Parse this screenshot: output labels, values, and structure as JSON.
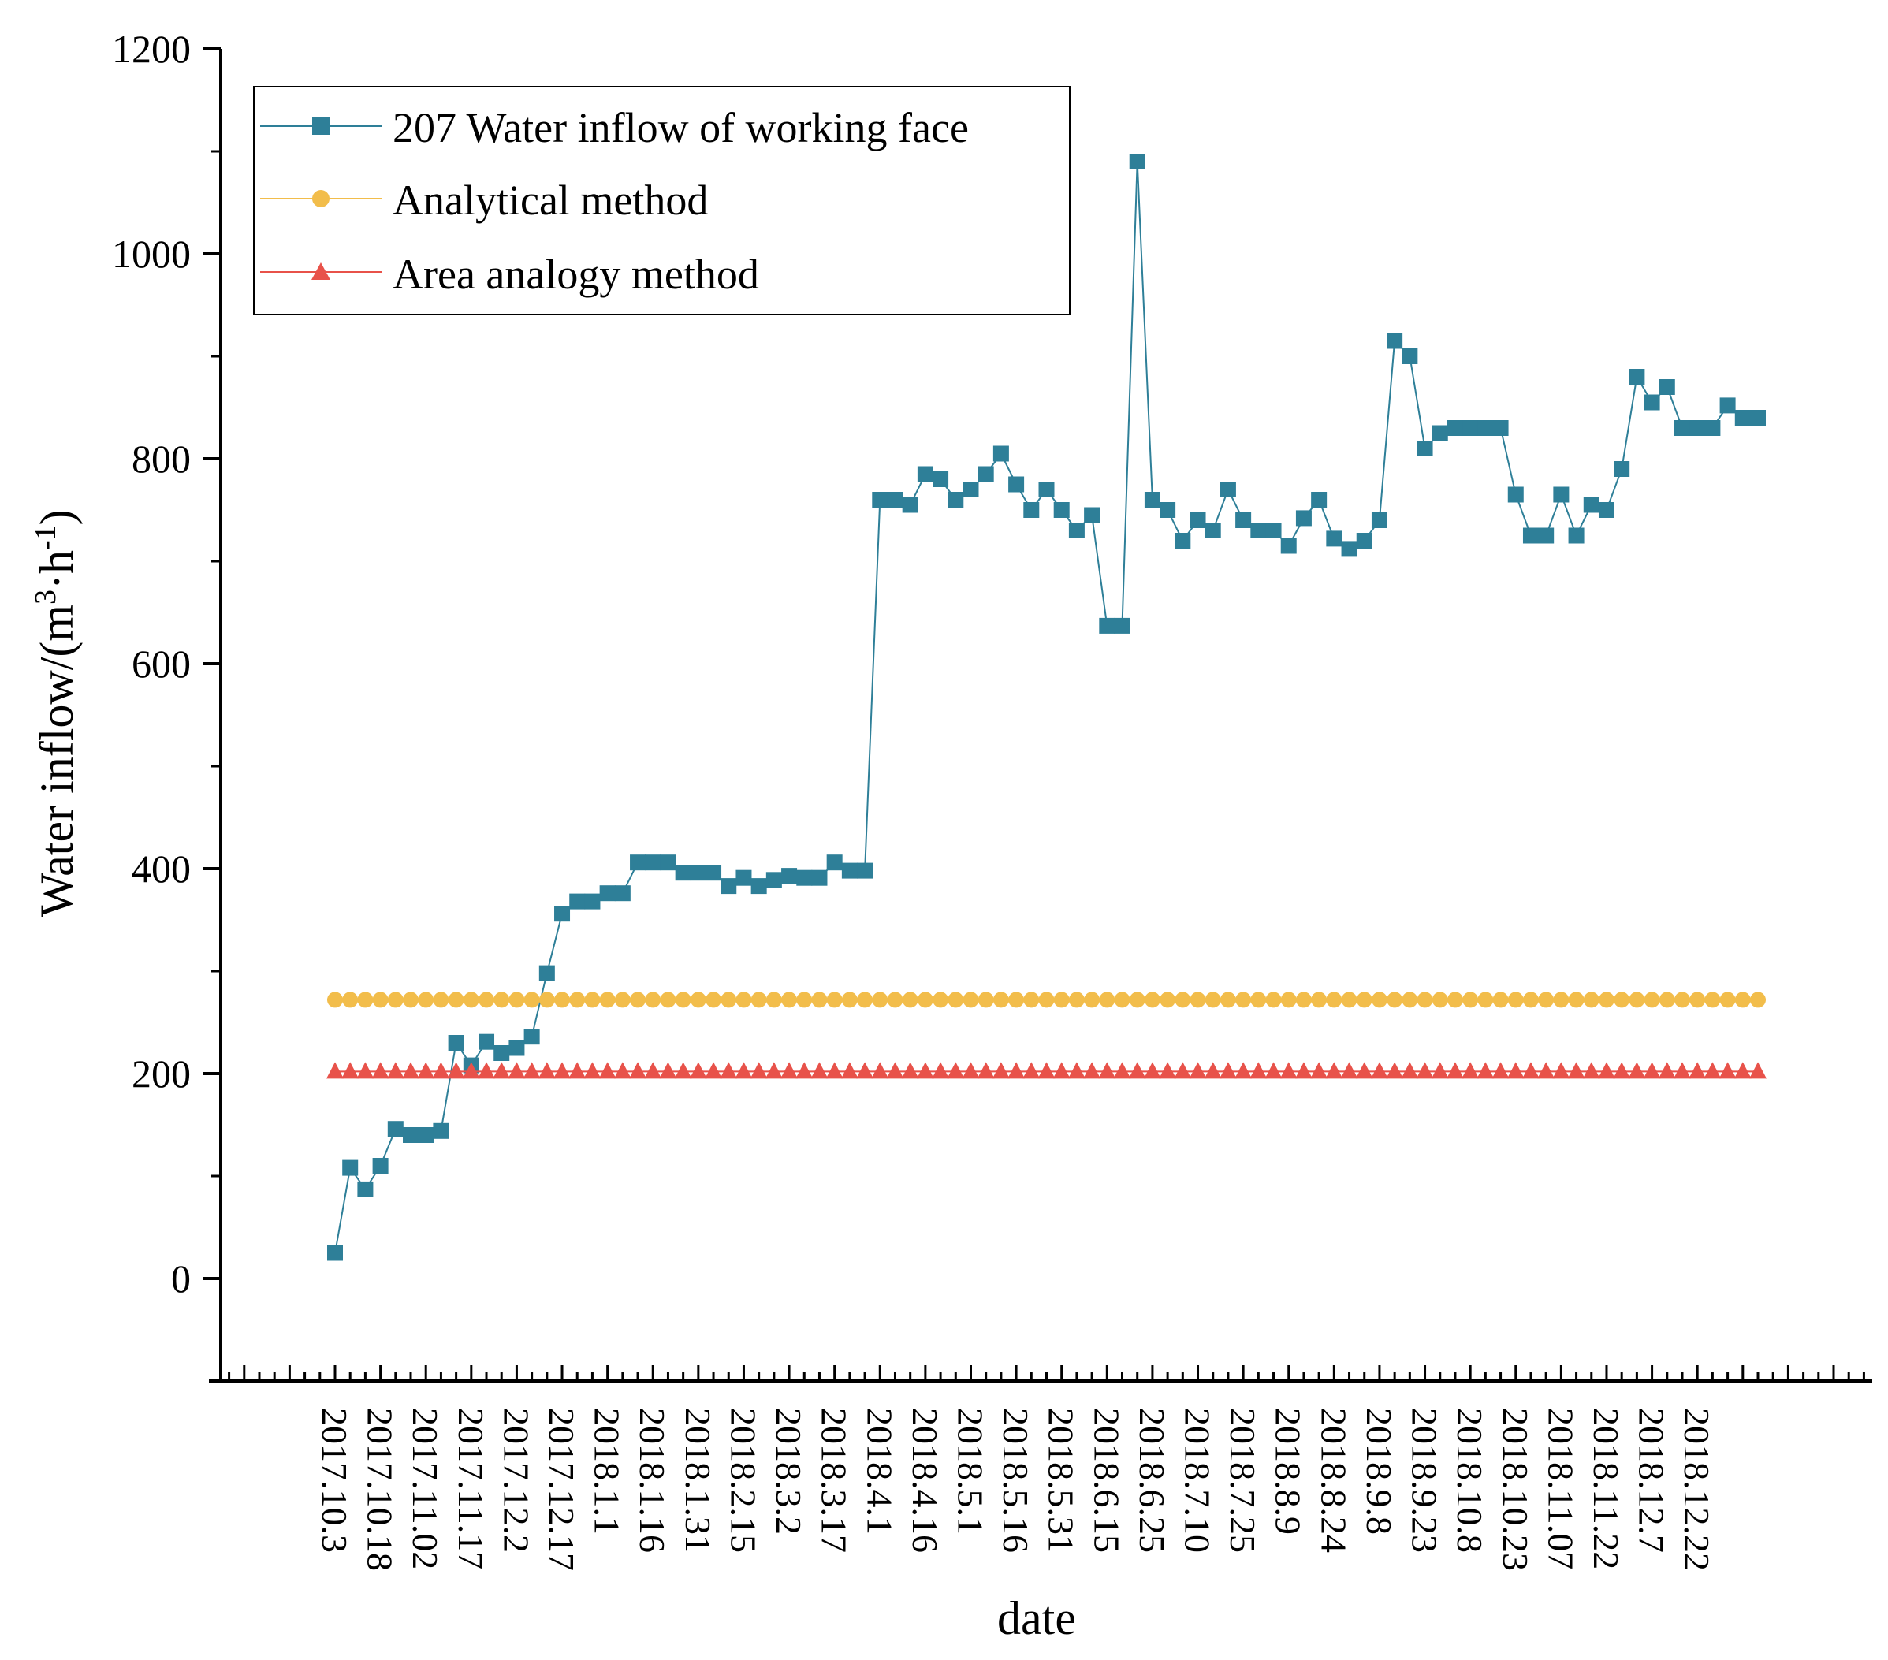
{
  "chart_data": {
    "type": "line",
    "title": "",
    "xlabel": "date",
    "ylabel": "Water inflow/(m³·h⁻¹)",
    "ylabel_parts": {
      "a": "Water inflow/(m",
      "b": "3",
      "c": "·h",
      "d": "-1",
      "e": ")"
    },
    "ylim": [
      -100,
      1200
    ],
    "y_ticks": [
      0,
      200,
      400,
      600,
      800,
      1000,
      1200
    ],
    "x_tick_labels": [
      "2017.10.3",
      "2017.10.18",
      "2017.11.02",
      "2017.11.17",
      "2017.12.2",
      "2017.12.17",
      "2018.1.1",
      "2018.1.16",
      "2018.1.31",
      "2018.2.15",
      "2018.3.2",
      "2018.3.17",
      "2018.4.1",
      "2018.4.16",
      "2018.5.1",
      "2018.5.16",
      "2018.5.31",
      "2018.6.15",
      "2018.6.25",
      "2018.7.10",
      "2018.7.25",
      "2018.8.9",
      "2018.8.24",
      "2018.9.8",
      "2018.9.23",
      "2018.10.8",
      "2018.10.23",
      "2018.11.07",
      "2018.11.22",
      "2018.12.7",
      "2018.12.22"
    ],
    "legend_position": "top-left",
    "series": [
      {
        "name": "207 Water inflow of working face",
        "color": "#2e7f98",
        "marker": "square",
        "values": [
          25,
          108,
          87,
          110,
          146,
          140,
          140,
          144,
          230,
          208,
          231,
          220,
          225,
          236,
          298,
          356,
          368,
          368,
          376,
          376,
          406,
          406,
          406,
          396,
          396,
          396,
          383,
          391,
          383,
          389,
          393,
          391,
          391,
          406,
          398,
          398,
          760,
          760,
          755,
          785,
          780,
          760,
          770,
          785,
          805,
          775,
          750,
          770,
          750,
          730,
          745,
          637,
          637,
          1090,
          760,
          750,
          720,
          740,
          730,
          770,
          740,
          730,
          730,
          715,
          742,
          760,
          722,
          712,
          720,
          740,
          915,
          900,
          810,
          825,
          830,
          830,
          830,
          830,
          765,
          725,
          725,
          765,
          725,
          755,
          750,
          790,
          880,
          855,
          870,
          830,
          830,
          830,
          852,
          840,
          840
        ]
      },
      {
        "name": "Analytical method",
        "color": "#f2bd4b",
        "marker": "circle",
        "constant": 272,
        "count": 95
      },
      {
        "name": "Area analogy method",
        "color": "#e8524a",
        "marker": "triangle",
        "constant": 202,
        "count": 95
      }
    ]
  }
}
